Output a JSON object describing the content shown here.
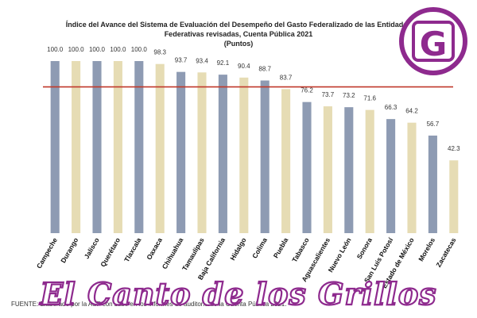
{
  "chart_data": {
    "type": "bar",
    "title_lines": [
      "Índice del Avance del Sistema de Evaluación del Desempeño del Gasto Federalizado de las Entidades",
      "Federativas revisadas, Cuenta Pública 2021",
      "(Puntos)"
    ],
    "categories": [
      "Campeche",
      "Durango",
      "Jalisco",
      "Querétaro",
      "Tlaxcala",
      "Oaxaca",
      "Chihuahua",
      "Tamaulipas",
      "Baja California",
      "Hidalgo",
      "Colima",
      "Puebla",
      "Tabasco",
      "Aguascalientes",
      "Nuevo León",
      "Sonora",
      "San Luis Potosí",
      "Estado de México",
      "Morelos",
      "Zacatecas"
    ],
    "values": [
      100.0,
      100.0,
      100.0,
      100.0,
      100.0,
      98.3,
      93.7,
      93.4,
      92.1,
      90.4,
      88.7,
      83.7,
      76.2,
      73.7,
      73.2,
      71.6,
      66.3,
      64.2,
      56.7,
      42.3
    ],
    "value_labels": [
      "100.0",
      "100.0",
      "100.0",
      "100.0",
      "100.0",
      "98.3",
      "93.7",
      "93.4",
      "92.1",
      "90.4",
      "88.7",
      "83.7",
      "76.2",
      "73.7",
      "73.2",
      "71.6",
      "66.3",
      "64.2",
      "56.7",
      "42.3"
    ],
    "bar_colors": [
      "#8e9bb3",
      "#e6dcb4",
      "#8e9bb3",
      "#e6dcb4",
      "#8e9bb3",
      "#e6dcb4",
      "#8e9bb3",
      "#e6dcb4",
      "#8e9bb3",
      "#e6dcb4",
      "#8e9bb3",
      "#e6dcb4",
      "#8e9bb3",
      "#e6dcb4",
      "#8e9bb3",
      "#e6dcb4",
      "#8e9bb3",
      "#e6dcb4",
      "#8e9bb3",
      "#e6dcb4"
    ],
    "reference_line": {
      "value": 85.0,
      "color": "#c0392b"
    },
    "ylim": [
      0,
      100
    ],
    "xlabel": "",
    "ylabel": "",
    "grid": false
  },
  "source_note": "FUENTE: Elaborado por la ASF con base en los informes de auditoría de la Cuenta Pública 2021.",
  "watermark": {
    "text": "El Canto de los Grillos",
    "logo_letter": "G",
    "color": "#8e2a8e"
  }
}
